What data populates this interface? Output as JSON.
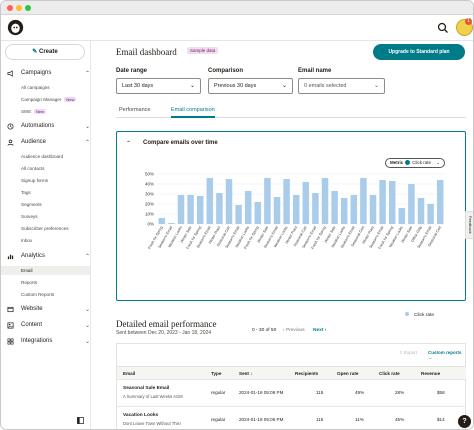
{
  "sidebar": {
    "create_label": "Create",
    "sections": [
      {
        "label": "Campaigns",
        "icon": "megaphone-icon",
        "chevron": "^"
      },
      {
        "label": "Automations",
        "icon": "automation-icon",
        "chevron": "v"
      },
      {
        "label": "Audience",
        "icon": "audience-icon",
        "chevron": "^"
      },
      {
        "label": "Analytics",
        "icon": "analytics-icon",
        "chevron": "^"
      },
      {
        "label": "Website",
        "icon": "website-icon",
        "chevron": "v"
      },
      {
        "label": "Content",
        "icon": "content-icon",
        "chevron": "v"
      },
      {
        "label": "Integrations",
        "icon": "integrations-icon",
        "chevron": "v"
      }
    ],
    "campaigns_items": [
      "All campaigns",
      "Campaign Manager",
      "SMS"
    ],
    "new_badge": "New",
    "audience_items": [
      "Audience dashboard",
      "All contacts",
      "Signup forms",
      "Tags",
      "Segments",
      "Surveys",
      "Subscriber preferences",
      "Inbox"
    ],
    "analytics_items": [
      "Email",
      "Reports",
      "Custom Reports"
    ]
  },
  "header": {
    "title": "Email dashboard",
    "sample_badge": "Sample data",
    "upgrade_label": "Upgrade to Standard plan",
    "avatar_badge": "1"
  },
  "filters": {
    "date_range_label": "Date range",
    "date_range_value": "Last 30 days",
    "comparison_label": "Comparison",
    "comparison_value": "Previous 30 days",
    "email_name_label": "Email name",
    "email_name_placeholder": "0 emails selected"
  },
  "tabs": [
    "Performance",
    "Email comparison"
  ],
  "compare_card": {
    "title": "Compare emails over time",
    "metric_label": "Metric",
    "metric_value": "Click rate",
    "legend": "Click rate",
    "pager_range": "0 - 30 of 50",
    "previous": "Previous",
    "next": "Next"
  },
  "chart_data": {
    "type": "bar",
    "ylim": [
      0,
      50
    ],
    "yticks": [
      "50%",
      "40%",
      "30%",
      "20%",
      "10%",
      "0%"
    ],
    "series": [
      {
        "name": "Click rate",
        "color": "#a9cceb"
      }
    ],
    "categories": [
      "Fresh for Spring",
      "Season's Email",
      "Vacation Looks",
      "Winter Sale",
      "Fresh for Spring",
      "Season's Email",
      "Winter Pract",
      "Seasonal Cart",
      "Season's Email",
      "Vacation Looks",
      "Fresh for Spring",
      "Winter Sale",
      "Season's Email",
      "Vacation Looks",
      "Winter Pract",
      "Seasonal Cart",
      "Season's Email",
      "Fresh for Spring",
      "Winter Sale",
      "Vacation Looks",
      "Season's Email",
      "Seasonal Cart",
      "Winter Pract",
      "Season's Email",
      "Fresh for Spring",
      "Vacation Looks",
      "Winter Sale",
      "Office Gifts",
      "Season's Email",
      "Seasonal Cart"
    ],
    "values": [
      6,
      1,
      29,
      29,
      28,
      46,
      31,
      45,
      19,
      33,
      22,
      46,
      27,
      45,
      29,
      42,
      31,
      46,
      33,
      26,
      29,
      46,
      29,
      44,
      43,
      16,
      40,
      26,
      20,
      44
    ]
  },
  "detailed": {
    "title": "Detailed email performance",
    "subtitle": "Sent between Dec 20, 2023 - Jan 18, 2024",
    "export": "Export",
    "custom_reports": "Custom reports",
    "columns": [
      "Email",
      "Type",
      "Sent",
      "Recipients",
      "Open rate",
      "Click rate",
      "Revenue"
    ],
    "rows": [
      {
        "name": "Seasonal Sale Email",
        "subject": "A Summary of Last Weeks AGM",
        "type": "regular",
        "sent": "2024-01-18 05:06 PM",
        "recipients": "115",
        "open": "49%",
        "click": "28%",
        "revenue": "$58"
      },
      {
        "name": "Vacation Looks",
        "subject": "Dont Leave Town Without This!",
        "type": "regular",
        "sent": "2024-01-18 05:06 PM",
        "recipients": "115",
        "open": "11%",
        "click": "45%",
        "revenue": "$14"
      }
    ]
  },
  "feedback_label": "Feedback",
  "help_label": "?"
}
